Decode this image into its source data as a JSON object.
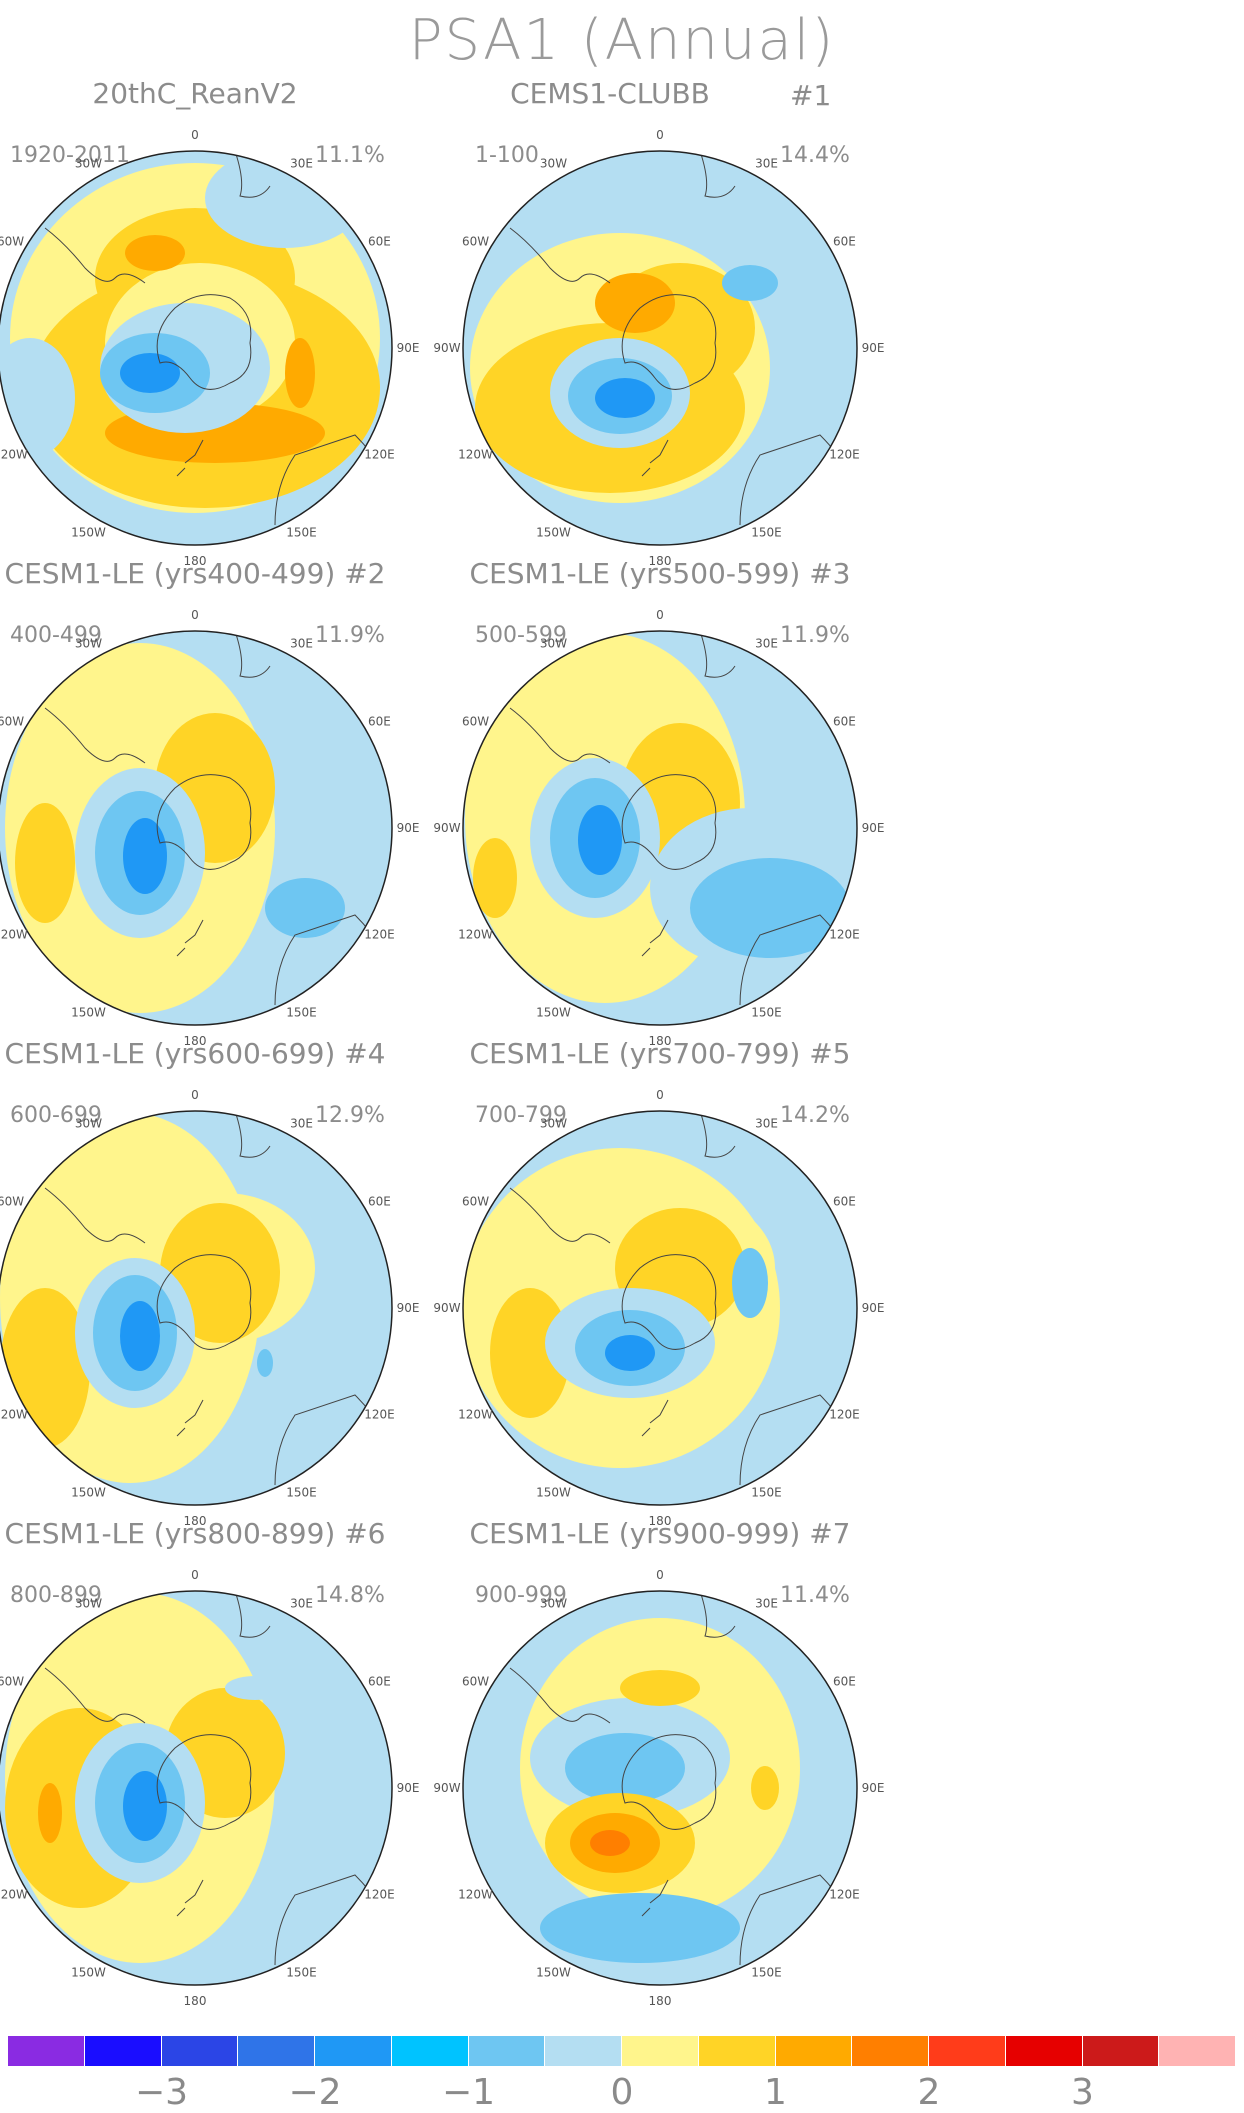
{
  "title": "PSA1 (Annual)",
  "panels": [
    {
      "title": "20thC_ReanV2",
      "years": "1920-2011",
      "pct": "11.1%"
    },
    {
      "title": "CEMS1-CLUBB",
      "tag": "#1",
      "years": "1-100",
      "pct": "14.4%"
    },
    {
      "title": "CESM1-LE (yrs400-499) #2",
      "years": "400-499",
      "pct": "11.9%"
    },
    {
      "title": "CESM1-LE (yrs500-599) #3",
      "years": "500-599",
      "pct": "11.9%"
    },
    {
      "title": "CESM1-LE (yrs600-699) #4",
      "years": "600-699",
      "pct": "12.9%"
    },
    {
      "title": "CESM1-LE (yrs700-799) #5",
      "years": "700-799",
      "pct": "14.2%"
    },
    {
      "title": "CESM1-LE (yrs800-899) #6",
      "years": "800-899",
      "pct": "14.8%"
    },
    {
      "title": "CESM1-LE (yrs900-999) #7",
      "years": "900-999",
      "pct": "11.4%"
    }
  ],
  "lon_labels": [
    "0",
    "30E",
    "60E",
    "90E",
    "120E",
    "150E",
    "180",
    "150W",
    "120W",
    "90W",
    "60W",
    "30W"
  ],
  "colorbar": {
    "colors": [
      "#8a2be2",
      "#1a0dff",
      "#2b45e6",
      "#2f74e8",
      "#1f98f5",
      "#00c3ff",
      "#6ec6f2",
      "#b4def2",
      "#fff58c",
      "#ffd426",
      "#ffaa00",
      "#ff7f00",
      "#ff3c1a",
      "#e60000",
      "#cc1a1a",
      "#ffb3b3"
    ],
    "tick_labels": [
      "−3",
      "−2",
      "−1",
      "0",
      "1",
      "2",
      "3"
    ]
  }
}
